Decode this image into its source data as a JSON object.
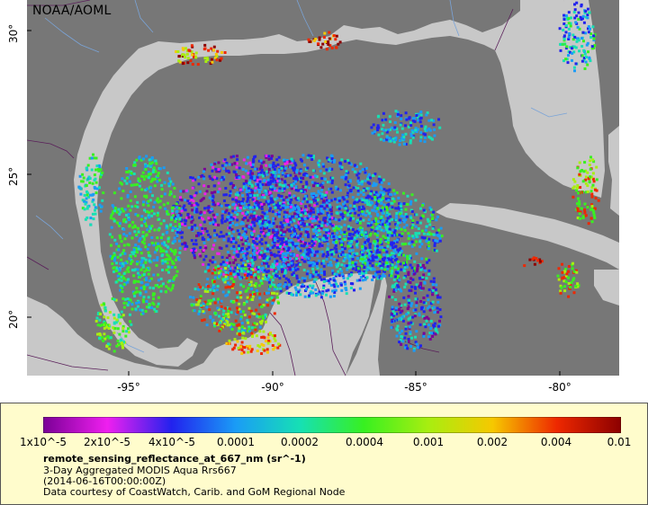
{
  "map": {
    "agency_label": "NOAA/AOML",
    "latitude_labels": [
      "30°",
      "25°",
      "20°"
    ],
    "longitude_labels": [
      "-95°",
      "-90°",
      "-85°",
      "-80°"
    ]
  },
  "legend": {
    "scale_ticks": [
      "1x10^-5",
      "2x10^-5",
      "4x10^-5",
      "0.0001",
      "0.0002",
      "0.0004",
      "0.001",
      "0.002",
      "0.004",
      "0.01"
    ],
    "colors": {
      "land": "#c8c8c8",
      "no_data_ocean": "#777777",
      "scale": [
        "#7a0096",
        "#ef1fef",
        "#2222ee",
        "#1a9cf6",
        "#16e0b4",
        "#38f020",
        "#a8ee10",
        "#f6c800",
        "#ee2800",
        "#8c0000"
      ]
    },
    "variable_line": "remote_sensing_reflectance_at_667_nm (sr^-1)",
    "description_line": "3-Day Aggregated MODIS Aqua Rrs667",
    "time_line": "(2014-06-16T00:00:00Z)",
    "credit_line": "Data courtesy of CoastWatch, Carib. and GoM Regional Node"
  }
}
